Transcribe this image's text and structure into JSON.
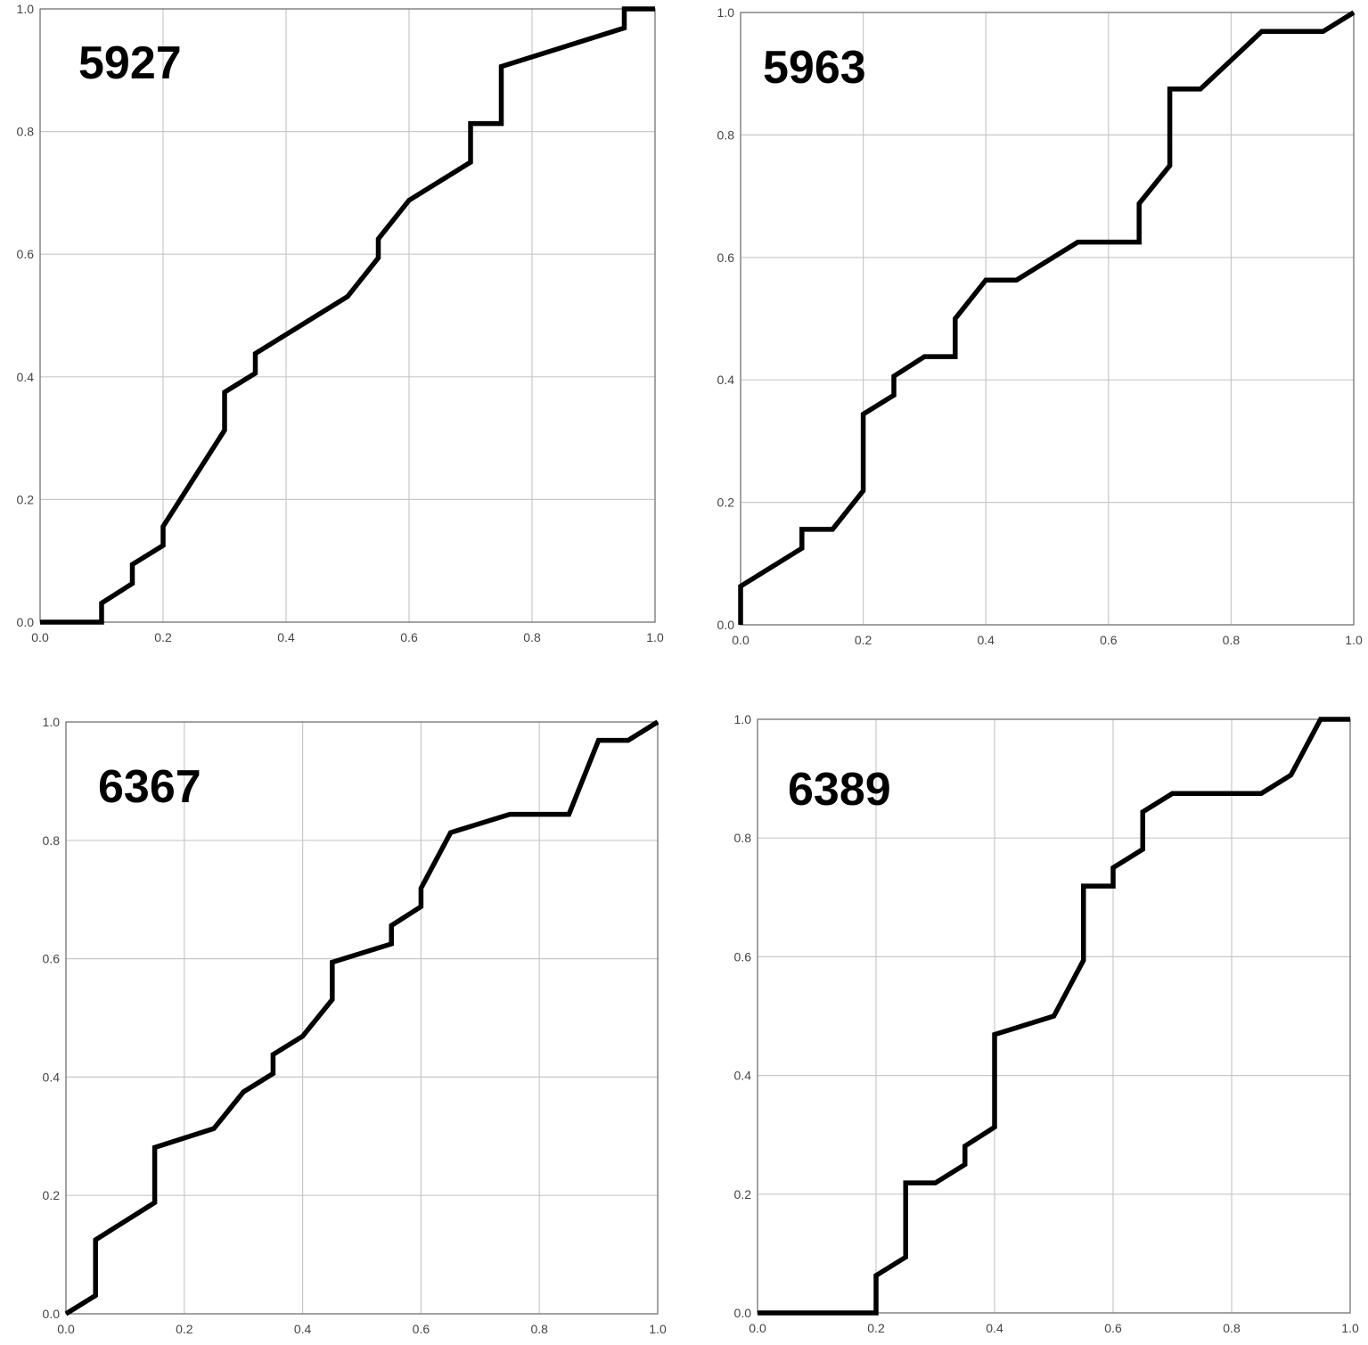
{
  "chart_data": [
    {
      "type": "line",
      "title": "5927",
      "xlabel": "",
      "ylabel": "",
      "xlim": [
        0,
        1
      ],
      "ylim": [
        0,
        1
      ],
      "x_ticks": [
        "0.0",
        "0.2",
        "0.4",
        "0.6",
        "0.8",
        "1.0"
      ],
      "y_ticks": [
        "0.0",
        "0.2",
        "0.4",
        "0.6",
        "0.8",
        "1.0"
      ],
      "grid": true,
      "series": [
        {
          "color": "#000000",
          "points": [
            [
              0.0,
              0.0
            ],
            [
              0.1,
              0.0
            ],
            [
              0.1,
              0.031
            ],
            [
              0.15,
              0.063
            ],
            [
              0.15,
              0.094
            ],
            [
              0.2,
              0.125
            ],
            [
              0.2,
              0.156
            ],
            [
              0.3,
              0.313
            ],
            [
              0.3,
              0.375
            ],
            [
              0.35,
              0.406
            ],
            [
              0.35,
              0.438
            ],
            [
              0.5,
              0.531
            ],
            [
              0.55,
              0.594
            ],
            [
              0.55,
              0.625
            ],
            [
              0.6,
              0.688
            ],
            [
              0.7,
              0.75
            ],
            [
              0.7,
              0.813
            ],
            [
              0.75,
              0.813
            ],
            [
              0.75,
              0.906
            ],
            [
              0.95,
              0.969
            ],
            [
              0.95,
              1.0
            ],
            [
              1.0,
              1.0
            ]
          ]
        }
      ]
    },
    {
      "type": "line",
      "title": "5963",
      "xlabel": "",
      "ylabel": "",
      "xlim": [
        0,
        1
      ],
      "ylim": [
        0,
        1
      ],
      "x_ticks": [
        "0.0",
        "0.2",
        "0.4",
        "0.6",
        "0.8",
        "1.0"
      ],
      "y_ticks": [
        "0.0",
        "0.2",
        "0.4",
        "0.6",
        "0.8",
        "1.0"
      ],
      "grid": true,
      "series": [
        {
          "color": "#000000",
          "points": [
            [
              0.0,
              0.0
            ],
            [
              0.0,
              0.063
            ],
            [
              0.1,
              0.125
            ],
            [
              0.1,
              0.156
            ],
            [
              0.15,
              0.156
            ],
            [
              0.2,
              0.219
            ],
            [
              0.2,
              0.344
            ],
            [
              0.25,
              0.375
            ],
            [
              0.25,
              0.406
            ],
            [
              0.3,
              0.438
            ],
            [
              0.35,
              0.438
            ],
            [
              0.35,
              0.5
            ],
            [
              0.4,
              0.563
            ],
            [
              0.45,
              0.563
            ],
            [
              0.55,
              0.625
            ],
            [
              0.65,
              0.625
            ],
            [
              0.65,
              0.688
            ],
            [
              0.7,
              0.75
            ],
            [
              0.7,
              0.875
            ],
            [
              0.75,
              0.875
            ],
            [
              0.85,
              0.969
            ],
            [
              0.95,
              0.969
            ],
            [
              1.0,
              1.0
            ]
          ]
        }
      ]
    },
    {
      "type": "line",
      "title": "6367",
      "xlabel": "",
      "ylabel": "",
      "xlim": [
        0,
        1
      ],
      "ylim": [
        0,
        1
      ],
      "x_ticks": [
        "0.0",
        "0.2",
        "0.4",
        "0.6",
        "0.8",
        "1.0"
      ],
      "y_ticks": [
        "0.0",
        "0.2",
        "0.4",
        "0.6",
        "0.8",
        "1.0"
      ],
      "grid": true,
      "series": [
        {
          "color": "#000000",
          "points": [
            [
              0.0,
              0.0
            ],
            [
              0.05,
              0.031
            ],
            [
              0.05,
              0.125
            ],
            [
              0.15,
              0.188
            ],
            [
              0.15,
              0.281
            ],
            [
              0.25,
              0.313
            ],
            [
              0.3,
              0.375
            ],
            [
              0.35,
              0.406
            ],
            [
              0.35,
              0.438
            ],
            [
              0.4,
              0.469
            ],
            [
              0.45,
              0.531
            ],
            [
              0.45,
              0.594
            ],
            [
              0.55,
              0.625
            ],
            [
              0.55,
              0.656
            ],
            [
              0.6,
              0.688
            ],
            [
              0.6,
              0.719
            ],
            [
              0.65,
              0.813
            ],
            [
              0.75,
              0.844
            ],
            [
              0.85,
              0.844
            ],
            [
              0.9,
              0.969
            ],
            [
              0.95,
              0.969
            ],
            [
              1.0,
              1.0
            ]
          ]
        }
      ]
    },
    {
      "type": "line",
      "title": "6389",
      "xlabel": "",
      "ylabel": "",
      "xlim": [
        0,
        1
      ],
      "ylim": [
        0,
        1
      ],
      "x_ticks": [
        "0.0",
        "0.2",
        "0.4",
        "0.6",
        "0.8",
        "1.0"
      ],
      "y_ticks": [
        "0.0",
        "0.2",
        "0.4",
        "0.6",
        "0.8",
        "1.0"
      ],
      "grid": true,
      "series": [
        {
          "color": "#000000",
          "points": [
            [
              0.0,
              0.0
            ],
            [
              0.2,
              0.0
            ],
            [
              0.2,
              0.063
            ],
            [
              0.25,
              0.094
            ],
            [
              0.25,
              0.219
            ],
            [
              0.3,
              0.219
            ],
            [
              0.35,
              0.25
            ],
            [
              0.35,
              0.281
            ],
            [
              0.4,
              0.313
            ],
            [
              0.4,
              0.469
            ],
            [
              0.5,
              0.5
            ],
            [
              0.55,
              0.594
            ],
            [
              0.55,
              0.719
            ],
            [
              0.6,
              0.719
            ],
            [
              0.6,
              0.75
            ],
            [
              0.65,
              0.781
            ],
            [
              0.65,
              0.844
            ],
            [
              0.7,
              0.875
            ],
            [
              0.85,
              0.875
            ],
            [
              0.9,
              0.906
            ],
            [
              0.95,
              1.0
            ],
            [
              1.0,
              1.0
            ]
          ]
        }
      ]
    }
  ]
}
